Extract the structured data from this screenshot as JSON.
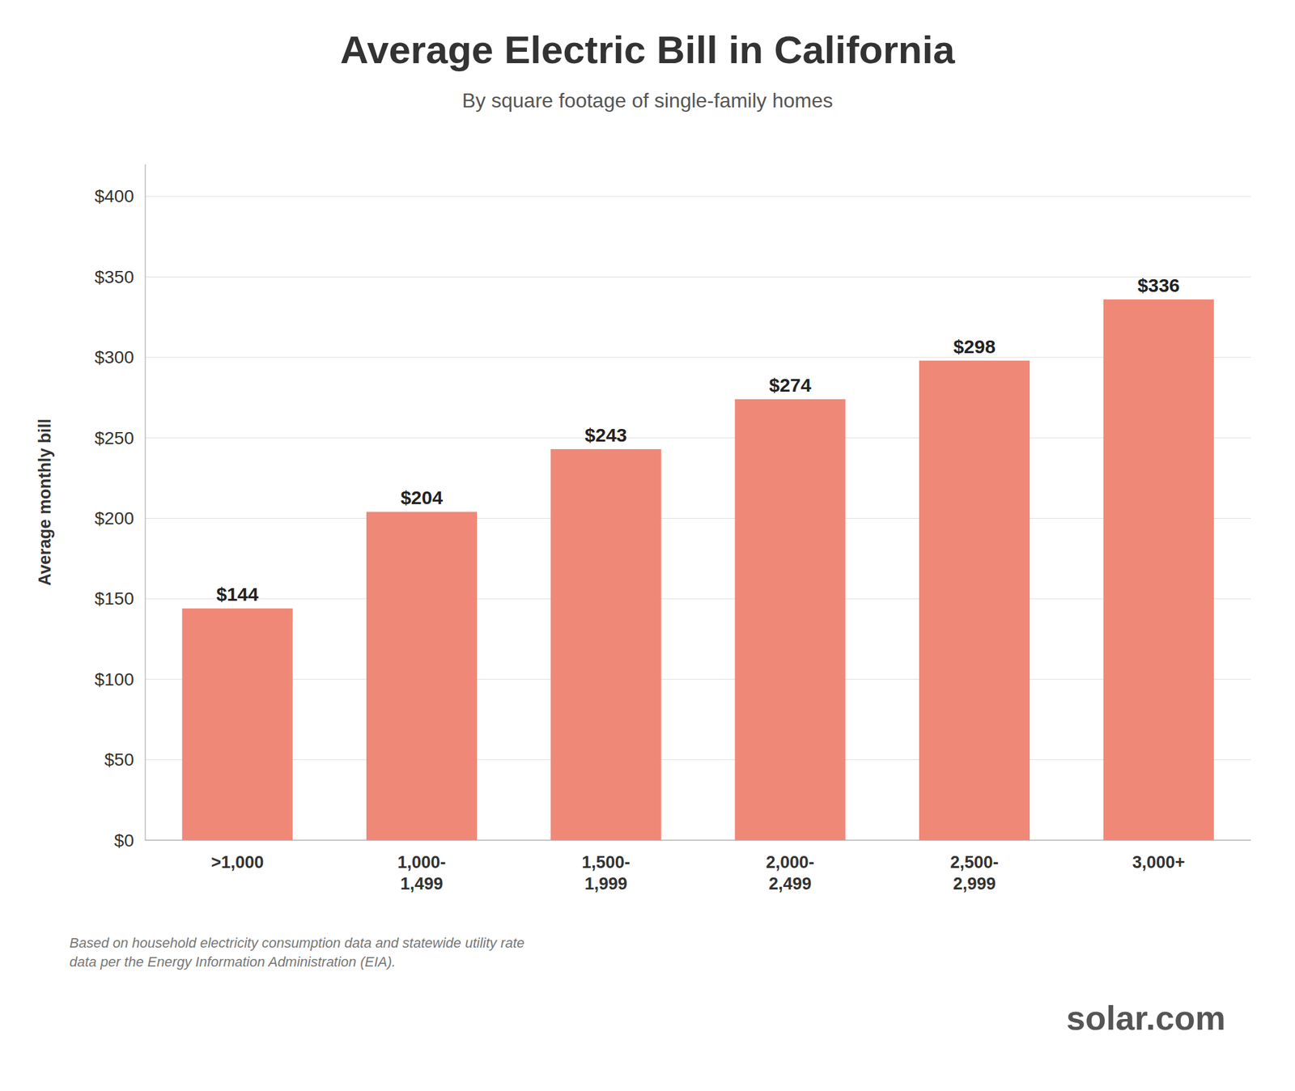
{
  "chart_data": {
    "type": "bar",
    "title": "Average Electric Bill in California",
    "subtitle": "By square footage of single-family homes",
    "y_label": "Average monthly bill",
    "categories": [
      ">1,000",
      "1,000-\n1,499",
      "1,500-\n1,999",
      "2,000-\n2,499",
      "2,500-\n2,999",
      "3,000+"
    ],
    "values": [
      144,
      204,
      243,
      274,
      298,
      336
    ],
    "value_labels": [
      "$144",
      "$204",
      "$243",
      "$274",
      "$298",
      "$336"
    ],
    "data_labels": true,
    "color": "#F08878",
    "ylim": [
      0,
      420
    ],
    "yticks": [
      {
        "value": 0,
        "label": "$0"
      },
      {
        "value": 50,
        "label": "$50"
      },
      {
        "value": 100,
        "label": "$100"
      },
      {
        "value": 150,
        "label": "$150"
      },
      {
        "value": 200,
        "label": "$200"
      },
      {
        "value": 250,
        "label": "$250"
      },
      {
        "value": 300,
        "label": "$300"
      },
      {
        "value": 350,
        "label": "$350"
      },
      {
        "value": 400,
        "label": "$400"
      }
    ],
    "grid": true,
    "annotations": [
      "Based on household electricity consumption data and statewide utility rate\ndata per the Energy Information Administration (EIA).",
      "solar.com"
    ]
  }
}
